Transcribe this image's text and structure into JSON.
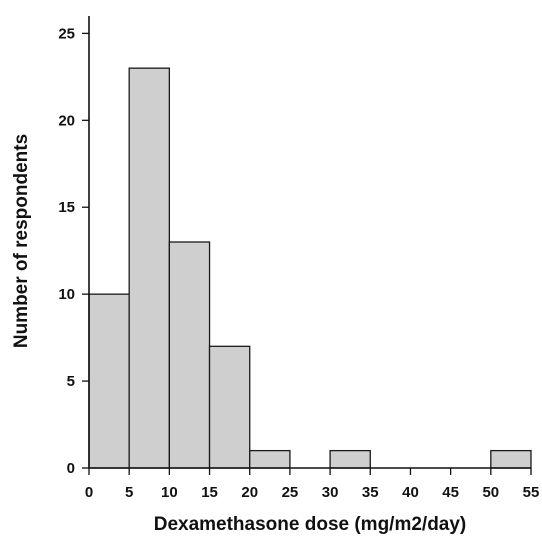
{
  "chart_data": {
    "type": "bar",
    "title": "",
    "xlabel": "Dexamethasone dose (mg/m2/day)",
    "ylabel": "Number of respondents",
    "bins": [
      {
        "start": 0,
        "end": 5,
        "value": 10
      },
      {
        "start": 5,
        "end": 10,
        "value": 23
      },
      {
        "start": 10,
        "end": 15,
        "value": 13
      },
      {
        "start": 15,
        "end": 20,
        "value": 7
      },
      {
        "start": 20,
        "end": 25,
        "value": 1
      },
      {
        "start": 25,
        "end": 30,
        "value": 0
      },
      {
        "start": 30,
        "end": 35,
        "value": 1
      },
      {
        "start": 35,
        "end": 40,
        "value": 0
      },
      {
        "start": 40,
        "end": 45,
        "value": 0
      },
      {
        "start": 45,
        "end": 50,
        "value": 0
      },
      {
        "start": 50,
        "end": 55,
        "value": 1
      }
    ],
    "xlim": [
      0,
      55
    ],
    "ylim": [
      0,
      25
    ],
    "xticks": [
      "0",
      "5",
      "10",
      "15",
      "20",
      "25",
      "30",
      "35",
      "40",
      "45",
      "50",
      "55"
    ],
    "yticks": [
      "0",
      "5",
      "10",
      "15",
      "20",
      "25"
    ],
    "grid": false,
    "colors": {
      "bar_fill": "#cfcfcf",
      "bar_stroke": "#1a1a1a",
      "axis": "#111111"
    }
  }
}
